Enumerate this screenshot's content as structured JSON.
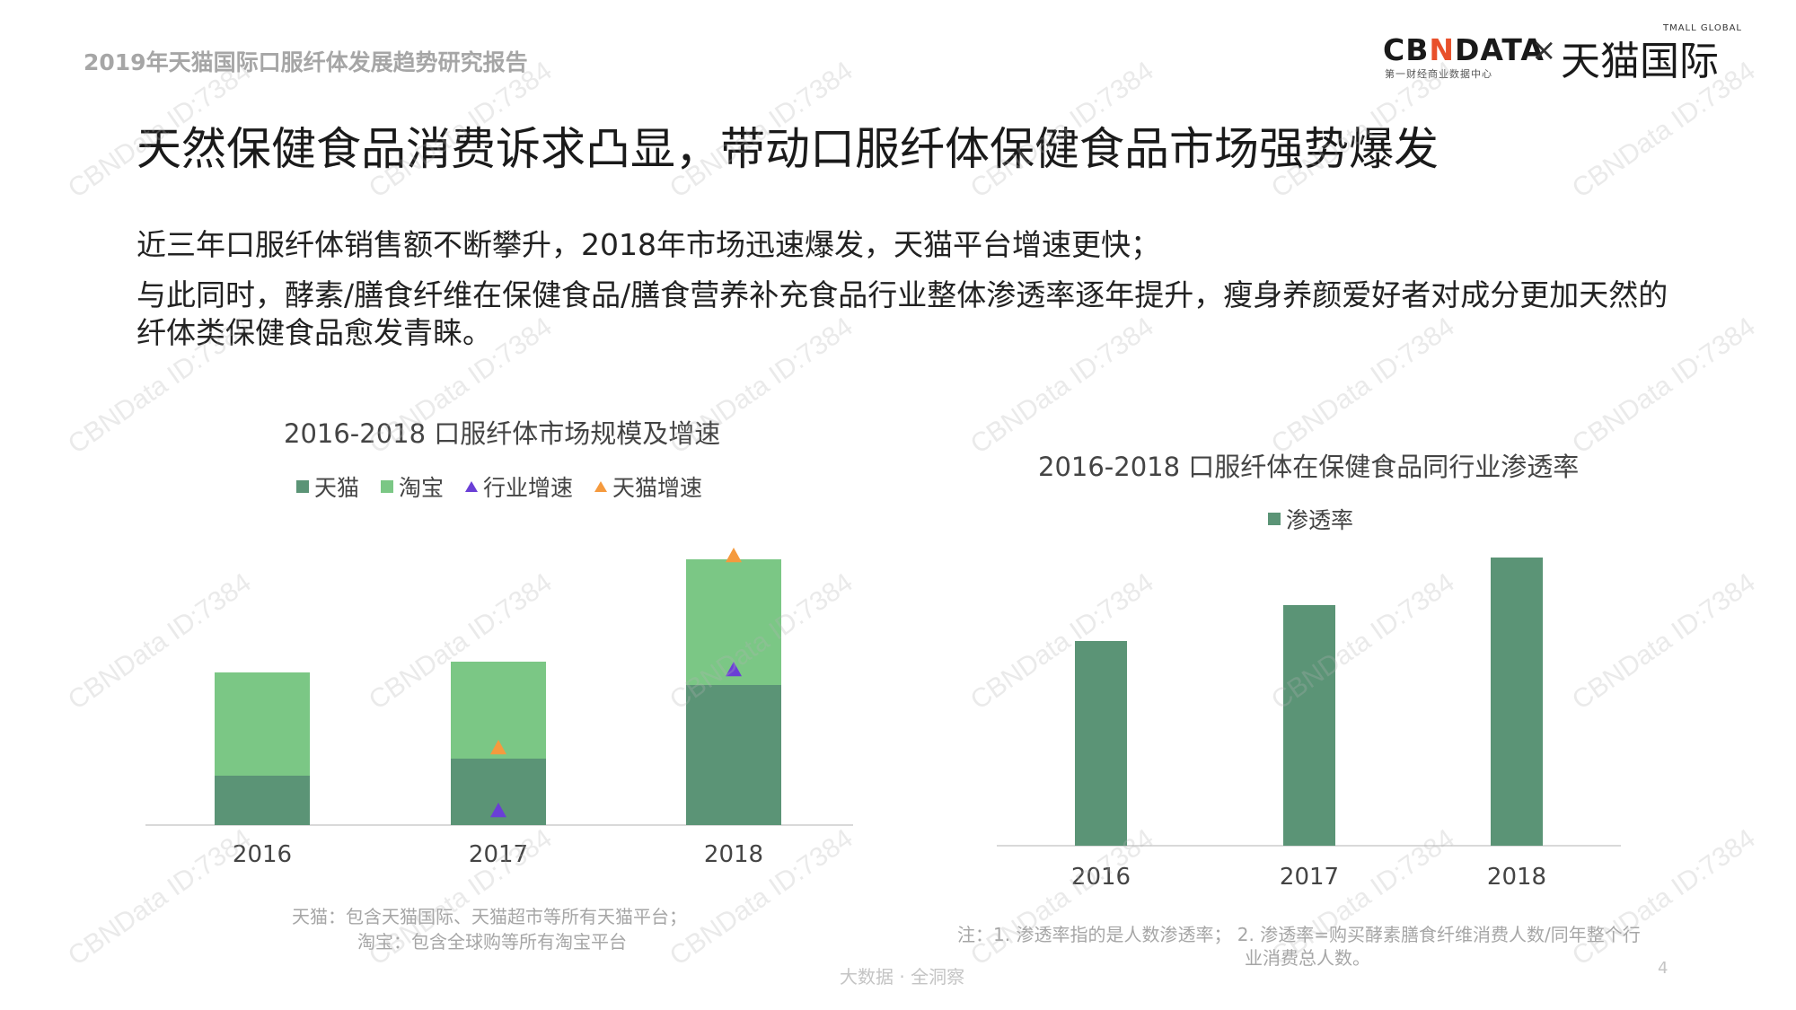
{
  "header": {
    "report_title": "2019年天猫国际口服纤体发展趋势研究报告",
    "logo_cbn_pre": "CB",
    "logo_cbn_accent": "N",
    "logo_cbn_post": "DATA",
    "logo_cbn_sub": "第一财经商业数据中心",
    "logo_x": "×",
    "logo_tmall": "天猫国际",
    "logo_tmall_en": "TMALL GLOBAL"
  },
  "main_title": "天然保健食品消费诉求凸显，带动口服纤体保健食品市场强势爆发",
  "description": [
    "近三年口服纤体销售额不断攀升，2018年市场迅速爆发，天猫平台增速更快；",
    "与此同时，酵素/膳食纤维在保健食品/膳食营养补充食品行业整体渗透率逐年提升，瘦身养颜爱好者对成分更加天然的纤体类保健食品愈发青睐。"
  ],
  "colors": {
    "tmall": "#5b9476",
    "taobao": "#7bc785",
    "industry_growth": "#6a3fd6",
    "tmall_growth": "#f59a3e",
    "penetration": "#5b9476",
    "axis": "#d9d9d9"
  },
  "chart_data": [
    {
      "type": "bar",
      "stacked": true,
      "title": "2016-2018 口服纤体市场规模及增速",
      "categories": [
        "2016",
        "2017",
        "2018"
      ],
      "series": [
        {
          "name": "天猫",
          "kind": "bar",
          "values": [
            55,
            74,
            156
          ]
        },
        {
          "name": "淘宝",
          "kind": "bar",
          "values": [
            115,
            108,
            140
          ]
        },
        {
          "name": "行业增速",
          "kind": "marker",
          "values": [
            null,
            16,
            173
          ]
        },
        {
          "name": "天猫增速",
          "kind": "marker",
          "values": [
            null,
            86,
            300
          ]
        }
      ],
      "ylim": [
        0,
        300
      ],
      "legend_position": "top",
      "grid": false
    },
    {
      "type": "bar",
      "title": "2016-2018 口服纤体在保健食品同行业渗透率",
      "categories": [
        "2016",
        "2017",
        "2018"
      ],
      "series": [
        {
          "name": "渗透率",
          "values": [
            228,
            268,
            321
          ]
        }
      ],
      "ylim": [
        0,
        321
      ],
      "legend_position": "top",
      "grid": false
    }
  ],
  "footnotes": {
    "chart1_line1": "天猫：包含天猫国际、天猫超市等所有天猫平台；",
    "chart1_line2": "淘宝：包含全球购等所有淘宝平台",
    "chart2_line1": "注：1. 渗透率指的是人数渗透率；  2. 渗透率=购买酵素膳食纤维消费人数/同年整个行",
    "chart2_line2": "业消费总人数。"
  },
  "footer": {
    "tagline": "大数据 · 全洞察",
    "page_number": "4"
  },
  "watermark": "CBNData ID:7384"
}
